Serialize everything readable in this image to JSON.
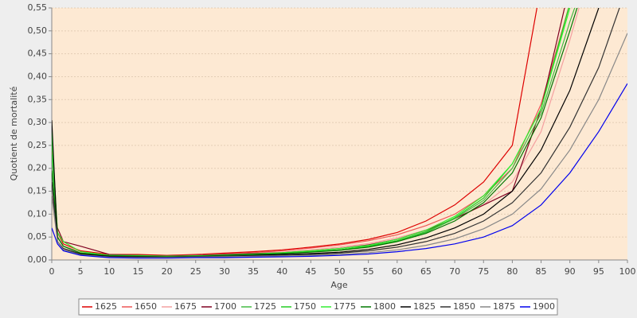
{
  "chart_data": {
    "type": "line",
    "x_label": "Age",
    "y_label": "Quotient de mortalité",
    "x": [
      0,
      1,
      2,
      5,
      10,
      15,
      20,
      25,
      30,
      35,
      40,
      45,
      50,
      55,
      60,
      65,
      70,
      75,
      80,
      85,
      90,
      95,
      100
    ],
    "xlim": [
      0,
      100
    ],
    "xticks": [
      0,
      5,
      10,
      15,
      20,
      25,
      30,
      35,
      40,
      45,
      50,
      55,
      60,
      65,
      70,
      75,
      80,
      85,
      90,
      95,
      100
    ],
    "ylim": [
      0,
      0.55
    ],
    "yticks": [
      {
        "value": 0,
        "label": "0,00"
      },
      {
        "value": 0.05,
        "label": "0,05"
      },
      {
        "value": 0.1,
        "label": "0,10"
      },
      {
        "value": 0.15,
        "label": "0,15"
      },
      {
        "value": 0.2,
        "label": "0,20"
      },
      {
        "value": 0.25,
        "label": "0,25"
      },
      {
        "value": 0.3,
        "label": "0,30"
      },
      {
        "value": 0.35,
        "label": "0,35"
      },
      {
        "value": 0.4,
        "label": "0,40"
      },
      {
        "value": 0.45,
        "label": "0,45"
      },
      {
        "value": 0.5,
        "label": "0,50"
      },
      {
        "value": 0.55,
        "label": "0,55"
      }
    ],
    "grid": true,
    "legend": "bottom",
    "series": [
      {
        "name": "1625",
        "color": "#dd0000",
        "values": [
          0.26,
          0.06,
          0.035,
          0.02,
          0.012,
          0.012,
          0.01,
          0.012,
          0.015,
          0.018,
          0.022,
          0.028,
          0.035,
          0.045,
          0.06,
          0.085,
          0.12,
          0.17,
          0.25,
          0.6,
          null,
          null,
          null
        ]
      },
      {
        "name": "1650",
        "color": "#ee5555",
        "values": [
          0.25,
          0.05,
          0.03,
          0.018,
          0.01,
          0.01,
          0.009,
          0.011,
          0.013,
          0.016,
          0.02,
          0.026,
          0.033,
          0.042,
          0.055,
          0.075,
          0.1,
          0.14,
          0.2,
          0.34,
          0.56,
          null,
          null
        ]
      },
      {
        "name": "1675",
        "color": "#f4a0a0",
        "values": [
          0.27,
          0.05,
          0.03,
          0.017,
          0.01,
          0.009,
          0.008,
          0.01,
          0.012,
          0.014,
          0.017,
          0.022,
          0.028,
          0.036,
          0.048,
          0.065,
          0.09,
          0.12,
          0.17,
          0.28,
          0.48,
          0.7,
          null
        ]
      },
      {
        "name": "1700",
        "color": "#800020",
        "values": [
          0.14,
          0.07,
          0.04,
          0.03,
          0.012,
          0.01,
          0.009,
          0.01,
          0.012,
          0.014,
          0.016,
          0.02,
          0.025,
          0.033,
          0.045,
          0.065,
          0.09,
          0.12,
          0.15,
          0.33,
          0.6,
          null,
          null
        ]
      },
      {
        "name": "1725",
        "color": "#44bb44",
        "values": [
          0.23,
          0.05,
          0.03,
          0.015,
          0.01,
          0.01,
          0.008,
          0.009,
          0.01,
          0.012,
          0.014,
          0.018,
          0.022,
          0.03,
          0.042,
          0.06,
          0.09,
          0.13,
          0.2,
          0.32,
          0.52,
          0.7,
          null
        ]
      },
      {
        "name": "1750",
        "color": "#22cc22",
        "values": [
          0.26,
          0.05,
          0.03,
          0.015,
          0.01,
          0.009,
          0.008,
          0.009,
          0.01,
          0.012,
          0.014,
          0.018,
          0.022,
          0.03,
          0.042,
          0.062,
          0.092,
          0.135,
          0.21,
          0.33,
          0.56,
          null,
          null
        ]
      },
      {
        "name": "1775",
        "color": "#33ee33",
        "values": [
          0.28,
          0.06,
          0.04,
          0.018,
          0.01,
          0.009,
          0.008,
          0.009,
          0.011,
          0.013,
          0.016,
          0.02,
          0.025,
          0.032,
          0.045,
          0.065,
          0.095,
          0.14,
          0.21,
          0.33,
          0.55,
          null,
          null
        ]
      },
      {
        "name": "1800",
        "color": "#007700",
        "values": [
          0.195,
          0.05,
          0.03,
          0.015,
          0.009,
          0.008,
          0.007,
          0.008,
          0.01,
          0.012,
          0.014,
          0.017,
          0.021,
          0.028,
          0.04,
          0.058,
          0.085,
          0.125,
          0.19,
          0.31,
          0.5,
          0.7,
          null
        ]
      },
      {
        "name": "1825",
        "color": "#000000",
        "values": [
          0.305,
          0.04,
          0.025,
          0.013,
          0.008,
          0.007,
          0.006,
          0.007,
          0.008,
          0.01,
          0.012,
          0.014,
          0.017,
          0.023,
          0.033,
          0.048,
          0.07,
          0.1,
          0.15,
          0.24,
          0.37,
          0.55,
          null
        ]
      },
      {
        "name": "1850",
        "color": "#333333",
        "values": [
          0.17,
          0.04,
          0.025,
          0.012,
          0.007,
          0.006,
          0.006,
          0.007,
          0.008,
          0.009,
          0.01,
          0.012,
          0.015,
          0.02,
          0.028,
          0.04,
          0.058,
          0.085,
          0.125,
          0.19,
          0.29,
          0.42,
          0.6
        ]
      },
      {
        "name": "1875",
        "color": "#888888",
        "values": [
          0.14,
          0.04,
          0.022,
          0.011,
          0.006,
          0.005,
          0.005,
          0.006,
          0.007,
          0.008,
          0.009,
          0.01,
          0.012,
          0.016,
          0.022,
          0.032,
          0.046,
          0.068,
          0.1,
          0.155,
          0.24,
          0.35,
          0.495
        ]
      },
      {
        "name": "1900",
        "color": "#0000ee",
        "values": [
          0.07,
          0.035,
          0.02,
          0.01,
          0.005,
          0.004,
          0.004,
          0.005,
          0.005,
          0.006,
          0.007,
          0.008,
          0.01,
          0.013,
          0.018,
          0.025,
          0.035,
          0.05,
          0.075,
          0.12,
          0.19,
          0.28,
          0.385
        ]
      }
    ]
  }
}
